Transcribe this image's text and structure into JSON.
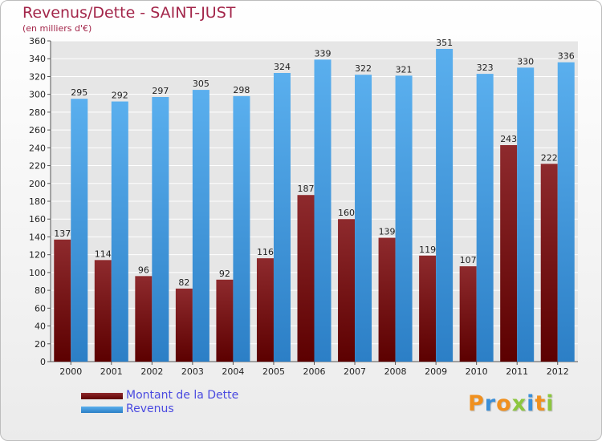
{
  "chart_data": {
    "type": "bar",
    "title": "Revenus/Dette - SAINT-JUST",
    "subtitle": "(en milliers d'€)",
    "categories": [
      "2000",
      "2001",
      "2002",
      "2003",
      "2004",
      "2005",
      "2006",
      "2007",
      "2008",
      "2009",
      "2010",
      "2011",
      "2012"
    ],
    "series": [
      {
        "name": "Montant de la Dette",
        "color": "#7b1111",
        "values": [
          137,
          114,
          96,
          82,
          92,
          116,
          187,
          160,
          139,
          119,
          107,
          243,
          222
        ]
      },
      {
        "name": "Revenus",
        "color": "#4aa3e6",
        "values": [
          295,
          292,
          297,
          305,
          298,
          324,
          339,
          322,
          321,
          351,
          323,
          330,
          336
        ]
      }
    ],
    "ylim": [
      0,
      360
    ],
    "yticks": [
      0,
      20,
      40,
      60,
      80,
      100,
      120,
      140,
      160,
      180,
      200,
      220,
      240,
      260,
      280,
      300,
      320,
      340,
      360
    ],
    "grid": true,
    "legend": "bottom-left"
  },
  "logo": {
    "letters": [
      {
        "char": "P",
        "color": "#f0901e"
      },
      {
        "char": "r",
        "color": "#3a8fd8"
      },
      {
        "char": "o",
        "color": "#f0901e"
      },
      {
        "char": "x",
        "color": "#8cc63f"
      },
      {
        "char": "i",
        "color": "#3a8fd8"
      },
      {
        "char": "t",
        "color": "#f0901e"
      },
      {
        "char": "i",
        "color": "#8cc63f"
      }
    ]
  }
}
